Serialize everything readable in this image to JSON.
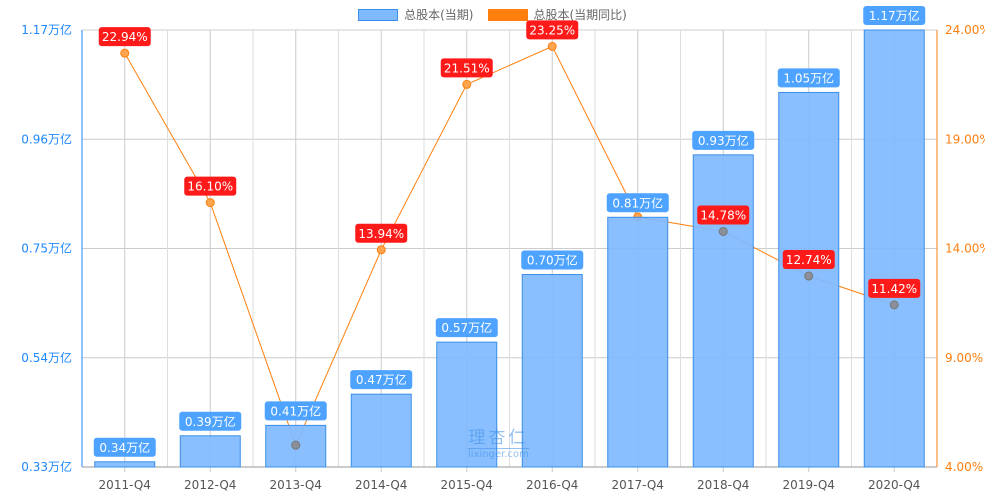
{
  "chart_data": {
    "type": "bar+line",
    "categories": [
      "2011-Q4",
      "2012-Q4",
      "2013-Q4",
      "2014-Q4",
      "2015-Q4",
      "2016-Q4",
      "2017-Q4",
      "2018-Q4",
      "2019-Q4",
      "2020-Q4"
    ],
    "series": [
      {
        "name": "总股本(当期)",
        "type": "bar",
        "axis": "left",
        "color": "#7fbaff",
        "values": [
          0.34,
          0.39,
          0.41,
          0.47,
          0.57,
          0.7,
          0.81,
          0.93,
          1.05,
          1.17
        ],
        "labels": [
          "0.34万亿",
          "0.39万亿",
          "0.41万亿",
          "0.47万亿",
          "0.57万亿",
          "0.70万亿",
          "0.81万亿",
          "0.93万亿",
          "1.05万亿",
          "1.17万亿"
        ]
      },
      {
        "name": "总股本(当期同比)",
        "type": "line",
        "axis": "right",
        "color": "#ff7f0e",
        "values": [
          22.94,
          16.1,
          5.0,
          13.94,
          21.51,
          23.25,
          15.44,
          14.78,
          12.74,
          11.42
        ],
        "labels": [
          "22.94%",
          "16.10%",
          null,
          "13.94%",
          "21.51%",
          "23.25%",
          null,
          "14.78%",
          "12.74%",
          "11.42%"
        ]
      }
    ],
    "y_left": {
      "range": [
        0.33,
        1.17
      ],
      "ticks": [
        "0.33万亿",
        "0.54万亿",
        "0.75万亿",
        "0.96万亿",
        "1.17万亿"
      ],
      "color": "#1e88ff"
    },
    "y_right": {
      "range": [
        4,
        24
      ],
      "ticks": [
        "4.00%",
        "9.00%",
        "14.00%",
        "19.00%",
        "24.00%"
      ],
      "color": "#ff7f0e"
    },
    "grid": true,
    "legend": "top-center",
    "bar_label_color": "#4da3ff",
    "line_label_color": "#ff1a1a"
  },
  "watermark": {
    "cn": "理杏仁",
    "en": "lixinger.com"
  }
}
